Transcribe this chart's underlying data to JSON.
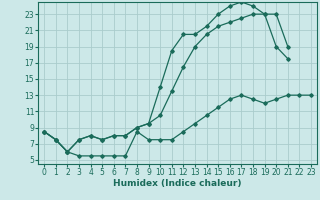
{
  "xlabel": "Humidex (Indice chaleur)",
  "bg_color": "#cce8e8",
  "line_color": "#1a6b5a",
  "grid_color": "#aacccc",
  "x_ticks": [
    0,
    1,
    2,
    3,
    4,
    5,
    6,
    7,
    8,
    9,
    10,
    11,
    12,
    13,
    14,
    15,
    16,
    17,
    18,
    19,
    20,
    21,
    22,
    23
  ],
  "y_ticks": [
    5,
    7,
    9,
    11,
    13,
    15,
    17,
    19,
    21,
    23
  ],
  "xlim": [
    -0.5,
    23.5
  ],
  "ylim": [
    4.5,
    24.5
  ],
  "line1_x": [
    0,
    1,
    2,
    3,
    4,
    5,
    6,
    7,
    8,
    9,
    10,
    11,
    12,
    13,
    14,
    15,
    16,
    17,
    18,
    19,
    20,
    21
  ],
  "line1_y": [
    8.5,
    7.5,
    6.0,
    7.5,
    8.0,
    7.5,
    8.0,
    8.0,
    9.0,
    9.5,
    14.0,
    18.5,
    20.5,
    20.5,
    21.5,
    23.0,
    24.0,
    24.5,
    24.0,
    23.0,
    19.0,
    17.5
  ],
  "line2_x": [
    0,
    1,
    2,
    3,
    4,
    5,
    6,
    7,
    8,
    9,
    10,
    11,
    12,
    13,
    14,
    15,
    16,
    17,
    18,
    19,
    20,
    21
  ],
  "line2_y": [
    8.5,
    7.5,
    6.0,
    7.5,
    8.0,
    7.5,
    8.0,
    8.0,
    9.0,
    9.5,
    10.5,
    13.5,
    16.5,
    19.0,
    20.5,
    21.5,
    22.0,
    22.5,
    23.0,
    23.0,
    23.0,
    19.0
  ],
  "line3_x": [
    0,
    1,
    2,
    3,
    4,
    5,
    6,
    7,
    8,
    9,
    10,
    11,
    12,
    13,
    14,
    15,
    16,
    17,
    18,
    19,
    20,
    21,
    22,
    23
  ],
  "line3_y": [
    8.5,
    7.5,
    6.0,
    5.5,
    5.5,
    5.5,
    5.5,
    5.5,
    8.5,
    7.5,
    7.5,
    7.5,
    8.5,
    9.5,
    10.5,
    11.5,
    12.5,
    13.0,
    12.5,
    12.0,
    12.5,
    13.0,
    13.0,
    13.0
  ]
}
